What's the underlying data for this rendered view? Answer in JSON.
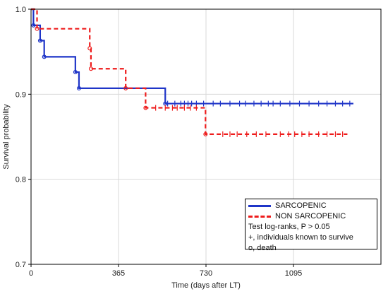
{
  "chart_data": {
    "type": "line",
    "title": "",
    "xlabel": "Time (days after LT)",
    "ylabel": "Survival probability",
    "xlim": [
      0,
      1460
    ],
    "ylim": [
      0.7,
      1.0
    ],
    "xticks": [
      0,
      365,
      730,
      1095
    ],
    "yticks": [
      0.7,
      0.8,
      0.9,
      1.0
    ],
    "ytick_labels": [
      "0.7",
      "0.8",
      "0.9",
      "1.0"
    ],
    "grid": true,
    "legend_position": "bottom-right",
    "colors": {
      "sarcopenic": "#1f35c8",
      "non_sarcopenic": "#ee1c1c"
    },
    "series": [
      {
        "name": "SARCOPENIC",
        "style": "solid",
        "steps": [
          [
            0,
            1.0
          ],
          [
            10,
            0.981
          ],
          [
            38,
            0.963
          ],
          [
            55,
            0.944
          ],
          [
            185,
            0.926
          ],
          [
            200,
            0.907
          ],
          [
            560,
            0.889
          ],
          [
            1345,
            0.889
          ]
        ],
        "deaths": [
          [
            10,
            0.981
          ],
          [
            38,
            0.963
          ],
          [
            55,
            0.944
          ],
          [
            185,
            0.926
          ],
          [
            200,
            0.907
          ],
          [
            560,
            0.889
          ]
        ],
        "censored": [
          [
            570,
            0.889
          ],
          [
            600,
            0.889
          ],
          [
            625,
            0.889
          ],
          [
            640,
            0.889
          ],
          [
            655,
            0.889
          ],
          [
            670,
            0.889
          ],
          [
            690,
            0.889
          ],
          [
            720,
            0.889
          ],
          [
            760,
            0.889
          ],
          [
            790,
            0.889
          ],
          [
            830,
            0.889
          ],
          [
            870,
            0.889
          ],
          [
            895,
            0.889
          ],
          [
            930,
            0.889
          ],
          [
            960,
            0.889
          ],
          [
            990,
            0.889
          ],
          [
            1010,
            0.889
          ],
          [
            1040,
            0.889
          ],
          [
            1080,
            0.889
          ],
          [
            1120,
            0.889
          ],
          [
            1160,
            0.889
          ],
          [
            1200,
            0.889
          ],
          [
            1235,
            0.889
          ],
          [
            1270,
            0.889
          ],
          [
            1300,
            0.889
          ],
          [
            1330,
            0.889
          ]
        ]
      },
      {
        "name": "NON SARCOPENIC",
        "style": "dashed",
        "steps": [
          [
            0,
            1.0
          ],
          [
            25,
            0.977
          ],
          [
            245,
            0.954
          ],
          [
            250,
            0.93
          ],
          [
            395,
            0.907
          ],
          [
            478,
            0.884
          ],
          [
            728,
            0.853
          ],
          [
            1320,
            0.853
          ]
        ],
        "deaths": [
          [
            25,
            0.977
          ],
          [
            245,
            0.954
          ],
          [
            250,
            0.93
          ],
          [
            395,
            0.907
          ],
          [
            478,
            0.884
          ],
          [
            728,
            0.853
          ]
        ],
        "censored": [
          [
            520,
            0.884
          ],
          [
            560,
            0.884
          ],
          [
            590,
            0.884
          ],
          [
            610,
            0.884
          ],
          [
            640,
            0.884
          ],
          [
            665,
            0.884
          ],
          [
            690,
            0.884
          ],
          [
            800,
            0.853
          ],
          [
            830,
            0.853
          ],
          [
            860,
            0.853
          ],
          [
            900,
            0.853
          ],
          [
            940,
            0.853
          ],
          [
            980,
            0.853
          ],
          [
            1040,
            0.853
          ],
          [
            1075,
            0.853
          ],
          [
            1100,
            0.853
          ],
          [
            1130,
            0.853
          ],
          [
            1160,
            0.853
          ],
          [
            1200,
            0.853
          ],
          [
            1235,
            0.853
          ],
          [
            1270,
            0.853
          ],
          [
            1300,
            0.853
          ]
        ]
      }
    ],
    "legend_entries": [
      "SARCOPENIC",
      "NON SARCOPENIC"
    ],
    "legend_notes": [
      "Test log-ranks, P > 0.05",
      "+, individuals known to survive",
      "o, death"
    ]
  }
}
